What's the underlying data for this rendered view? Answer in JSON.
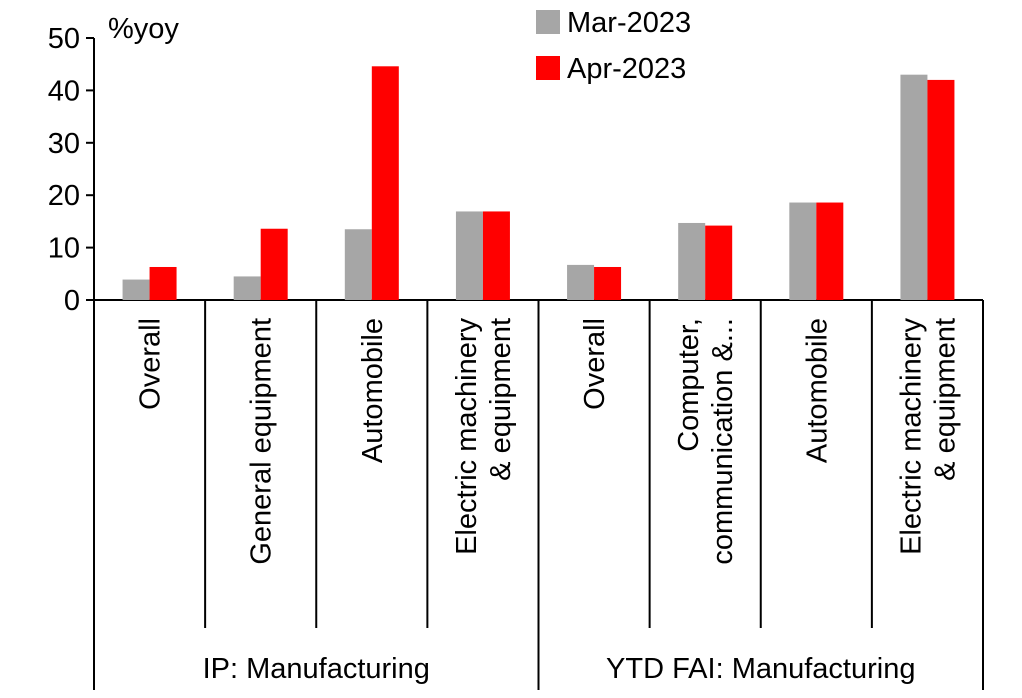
{
  "chart_data": {
    "type": "bar",
    "ylabel": "%yoy",
    "ylim": [
      0,
      50
    ],
    "yticks": [
      0,
      10,
      20,
      30,
      40,
      50
    ],
    "ytick_labels": [
      "0",
      "10",
      "20",
      "30",
      "40",
      "50"
    ],
    "grid": false,
    "legend_position": "top-center",
    "groups": [
      {
        "label": "IP: Manufacturing",
        "start": 0,
        "count": 4
      },
      {
        "label": "YTD FAI: Manufacturing",
        "start": 4,
        "count": 4
      }
    ],
    "categories": [
      [
        "Overall"
      ],
      [
        "General equipment"
      ],
      [
        "Automobile"
      ],
      [
        "Electric machinery",
        "& equipment"
      ],
      [
        "Overall"
      ],
      [
        "Computer,",
        "communication &..."
      ],
      [
        "Automobile"
      ],
      [
        "Electric machinery",
        "& equipment"
      ]
    ],
    "series": [
      {
        "name": "Mar-2023",
        "color": "#a6a6a6",
        "values": [
          3.9,
          4.5,
          13.5,
          16.9,
          6.7,
          14.7,
          18.6,
          43.0
        ]
      },
      {
        "name": "Apr-2023",
        "color": "#ff0000",
        "values": [
          6.3,
          13.6,
          44.6,
          16.9,
          6.3,
          14.2,
          18.6,
          42.0
        ]
      }
    ]
  }
}
